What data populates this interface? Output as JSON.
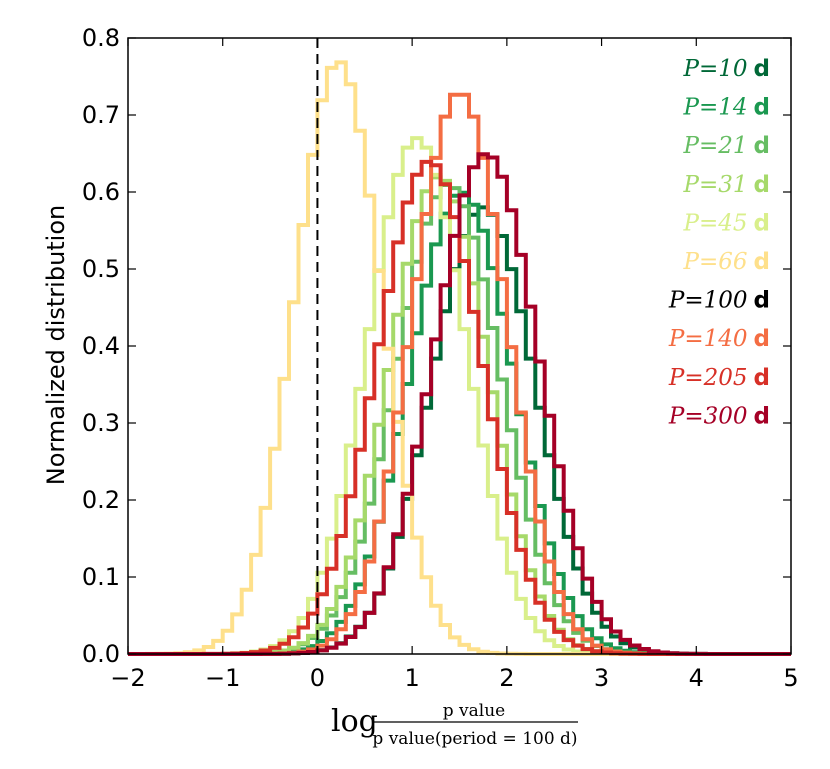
{
  "chart_data": {
    "type": "line",
    "style": "step-histogram",
    "title": "",
    "ylabel": "Normalized distribution",
    "xlabel": {
      "prefix": "log",
      "numerator": "p value",
      "denominator": "p value(period = 100 d)"
    },
    "xlim": [
      -2,
      5
    ],
    "ylim": [
      0,
      0.8
    ],
    "xticks": [
      -2,
      -1,
      0,
      1,
      2,
      3,
      4,
      5
    ],
    "xtick_labels": [
      "−2",
      "−1",
      "0",
      "1",
      "2",
      "3",
      "4",
      "5"
    ],
    "yticks": [
      0,
      0.1,
      0.2,
      0.3,
      0.4,
      0.5,
      0.6,
      0.7,
      0.8
    ],
    "ytick_labels": [
      "0.0",
      "0.1",
      "0.2",
      "0.3",
      "0.4",
      "0.5",
      "0.6",
      "0.7",
      "0.8"
    ],
    "reference_line": {
      "x": 0,
      "style": "dashed",
      "color": "#000000"
    },
    "legend_placement": "top-right",
    "series": [
      {
        "name": "P=10 d",
        "symbol": "P",
        "value": "=10",
        "unit": "d",
        "color": "#006837",
        "center": 1.75,
        "sigma": 0.55,
        "peak": 0.58
      },
      {
        "name": "P=14 d",
        "symbol": "P",
        "value": "=14",
        "unit": "d",
        "color": "#1a9850",
        "center": 1.52,
        "sigma": 0.55,
        "peak": 0.6
      },
      {
        "name": "P=21 d",
        "symbol": "P",
        "value": "=21",
        "unit": "d",
        "color": "#66bd63",
        "center": 1.38,
        "sigma": 0.55,
        "peak": 0.61
      },
      {
        "name": "P=31 d",
        "symbol": "P",
        "value": "=31",
        "unit": "d",
        "color": "#a6d96a",
        "center": 1.28,
        "sigma": 0.52,
        "peak": 0.62
      },
      {
        "name": "P=45 d",
        "symbol": "P",
        "value": "=45",
        "unit": "d",
        "color": "#d9ef8b",
        "center": 1.05,
        "sigma": 0.52,
        "peak": 0.67
      },
      {
        "name": "P=66 d",
        "symbol": "P",
        "value": "=66",
        "unit": "d",
        "color": "#fee08b",
        "center": 0.22,
        "sigma": 0.46,
        "peak": 0.77
      },
      {
        "name": "P=100 d",
        "symbol": "P",
        "value": "=100",
        "unit": "d",
        "color": "#000000",
        "center": null,
        "sigma": null,
        "peak": null
      },
      {
        "name": "P=140 d",
        "symbol": "P",
        "value": "=140",
        "unit": "d",
        "color": "#f46d43",
        "center": 1.5,
        "sigma": 0.5,
        "peak": 0.73
      },
      {
        "name": "P=205 d",
        "symbol": "P",
        "value": "=205",
        "unit": "d",
        "color": "#d73027",
        "center": 1.18,
        "sigma": 0.55,
        "peak": 0.64
      },
      {
        "name": "P=300 d",
        "symbol": "P",
        "value": "=300",
        "unit": "d",
        "color": "#a50026",
        "center": 1.78,
        "sigma": 0.55,
        "peak": 0.65
      }
    ],
    "bins": {
      "start": -2,
      "end": 5,
      "width": 0.1
    }
  }
}
